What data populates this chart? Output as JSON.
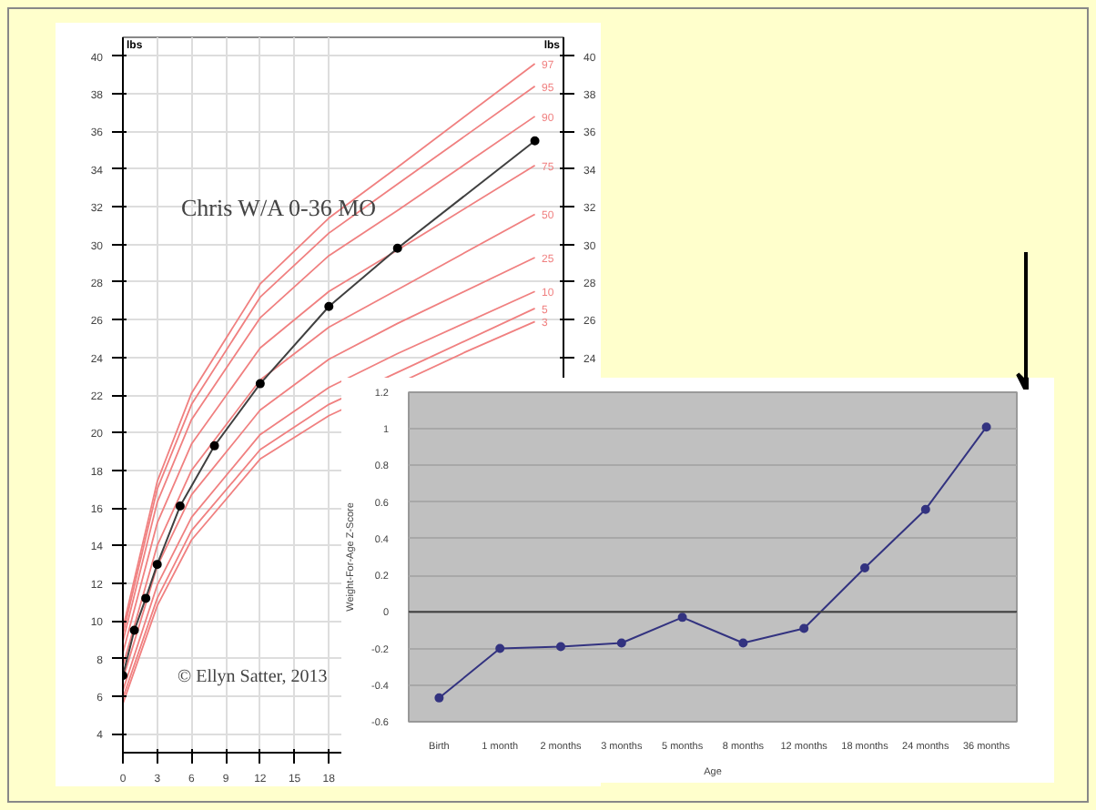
{
  "chart_data": [
    {
      "type": "line",
      "title": "Chris W/A 0-36 MO",
      "ylabel": "lbs",
      "y2label": "lbs",
      "xlim": [
        0,
        38.5
      ],
      "xticks": [
        0,
        3,
        6,
        9,
        12,
        15,
        18
      ],
      "ylim": [
        3,
        41
      ],
      "yticks": [
        4,
        6,
        8,
        10,
        12,
        14,
        16,
        18,
        20,
        22,
        24,
        26,
        28,
        30,
        32,
        34,
        36,
        38,
        40
      ],
      "y2lim": [
        3,
        41
      ],
      "y2ticks": [
        24,
        26,
        28,
        30,
        32,
        34,
        36,
        38,
        40
      ],
      "grid": true,
      "marker": "circle",
      "annotations": [
        "© Ellyn Satter, 2013"
      ],
      "series": [
        {
          "name": "97",
          "color": "#f08080",
          "marker": "none",
          "x": [
            0,
            3,
            6,
            12,
            18,
            24,
            36
          ],
          "values": [
            9.6,
            17.4,
            22.1,
            27.9,
            31.4,
            34.1,
            39.6
          ]
        },
        {
          "name": "95",
          "color": "#f08080",
          "marker": "none",
          "x": [
            0,
            3,
            6,
            12,
            18,
            24,
            36
          ],
          "values": [
            9.3,
            17.0,
            21.5,
            27.2,
            30.6,
            33.2,
            38.4
          ]
        },
        {
          "name": "90",
          "color": "#f08080",
          "marker": "none",
          "x": [
            0,
            3,
            6,
            12,
            18,
            24,
            36
          ],
          "values": [
            8.9,
            16.3,
            20.7,
            26.1,
            29.4,
            31.8,
            36.8
          ]
        },
        {
          "name": "75",
          "color": "#f08080",
          "marker": "none",
          "x": [
            0,
            3,
            6,
            12,
            18,
            24,
            36
          ],
          "values": [
            8.3,
            15.2,
            19.4,
            24.5,
            27.5,
            29.7,
            34.2
          ]
        },
        {
          "name": "50",
          "color": "#f08080",
          "marker": "none",
          "x": [
            0,
            3,
            6,
            12,
            18,
            24,
            36
          ],
          "values": [
            7.6,
            14.0,
            18.0,
            22.8,
            25.6,
            27.6,
            31.6
          ]
        },
        {
          "name": "25",
          "color": "#f08080",
          "marker": "none",
          "x": [
            0,
            3,
            6,
            12,
            18,
            24,
            36
          ],
          "values": [
            6.9,
            12.9,
            16.7,
            21.2,
            23.9,
            25.8,
            29.3
          ]
        },
        {
          "name": "10",
          "color": "#f08080",
          "marker": "none",
          "x": [
            0,
            3,
            6,
            12,
            18,
            24,
            36
          ],
          "values": [
            6.3,
            11.9,
            15.5,
            19.9,
            22.4,
            24.2,
            27.5
          ]
        },
        {
          "name": "5",
          "color": "#f08080",
          "marker": "none",
          "x": [
            0,
            3,
            6,
            12,
            18,
            24,
            36
          ],
          "values": [
            5.9,
            11.2,
            14.8,
            19.1,
            21.5,
            23.2,
            26.6
          ]
        },
        {
          "name": "3",
          "color": "#f08080",
          "marker": "none",
          "x": [
            0,
            3,
            6,
            12,
            18,
            30,
            36
          ],
          "values": [
            5.6,
            10.8,
            14.3,
            18.6,
            20.9,
            24.3,
            25.9
          ]
        },
        {
          "color": "#404040",
          "x": [
            0,
            1,
            2,
            3,
            5,
            8,
            12,
            18,
            24,
            36
          ],
          "values": [
            7.1,
            9.5,
            11.2,
            13.0,
            16.1,
            19.3,
            22.6,
            26.7,
            29.8,
            35.5
          ]
        }
      ]
    },
    {
      "type": "line",
      "xlabel": "Age",
      "ylabel": "Weight-For-Age Z-Score",
      "categories": [
        "Birth",
        "1 month",
        "2 months",
        "3 months",
        "5 months",
        "8 months",
        "12 months",
        "18 months",
        "24 months",
        "36 months"
      ],
      "values": [
        -0.47,
        -0.2,
        -0.19,
        -0.17,
        -0.03,
        -0.17,
        -0.09,
        0.24,
        0.56,
        1.01
      ],
      "color": "#333380",
      "marker": "circle",
      "grid": "y",
      "ylim": [
        -0.6,
        1.2
      ],
      "yticks": [
        {
          "value": -0.6,
          "label": "-0.6"
        },
        {
          "value": -0.4,
          "label": "-0.4"
        },
        {
          "value": -0.2,
          "label": "-0.2"
        },
        0,
        {
          "value": 0.2,
          "label": "0.2"
        },
        {
          "value": 0.4,
          "label": "0.4"
        },
        {
          "value": 0.6,
          "label": "0.6"
        },
        {
          "value": 0.8,
          "label": "0.8"
        },
        1,
        {
          "value": 1.2,
          "label": "1.2"
        }
      ],
      "ref_lines": [
        {
          "axis": "y",
          "value": 0,
          "color": "#404040"
        }
      ]
    }
  ]
}
